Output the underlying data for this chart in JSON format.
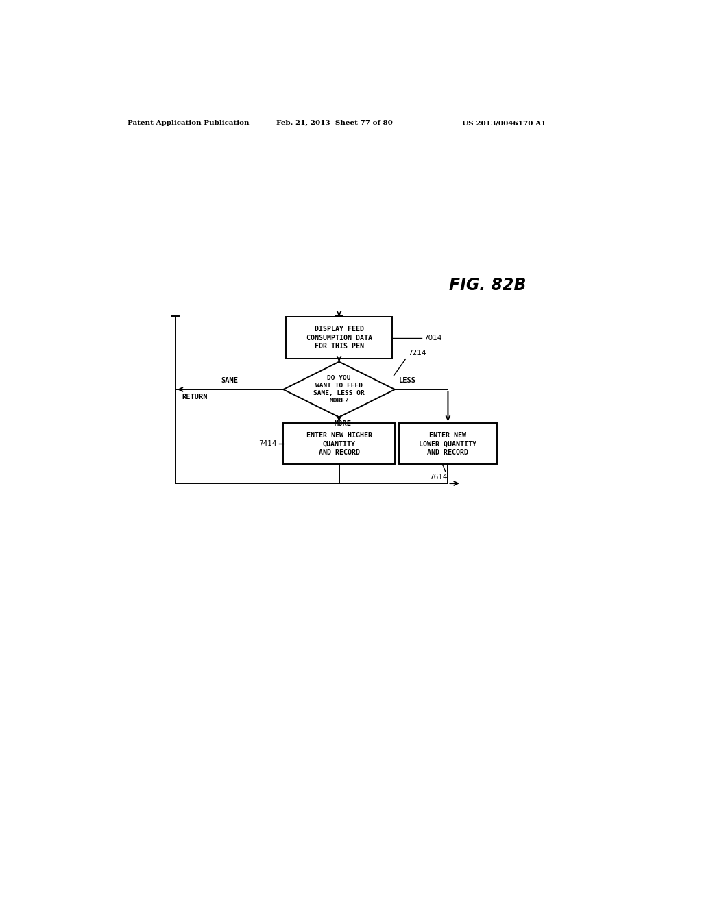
{
  "title": "FIG. 82B",
  "header_left": "Patent Application Publication",
  "header_mid": "Feb. 21, 2013  Sheet 77 of 80",
  "header_right": "US 2013/0046170 A1",
  "box1_text": "DISPLAY FEED\nCONSUMPTION DATA\nFOR THIS PEN",
  "box1_label": "7014",
  "diamond_text": "DO YOU\nWANT TO FEED\nSAME, LESS OR\nMORE?",
  "diamond_label": "7214",
  "box2_text": "ENTER NEW HIGHER\nQUANTITY\nAND RECORD",
  "box2_label": "7414",
  "box3_text": "ENTER NEW\nLOWER QUANTITY\nAND RECORD",
  "box3_label": "7614",
  "label_same": "SAME",
  "label_less": "LESS",
  "label_more": "MORE",
  "label_return": "RETURN",
  "bg_color": "#ffffff",
  "line_color": "#000000",
  "text_color": "#000000"
}
